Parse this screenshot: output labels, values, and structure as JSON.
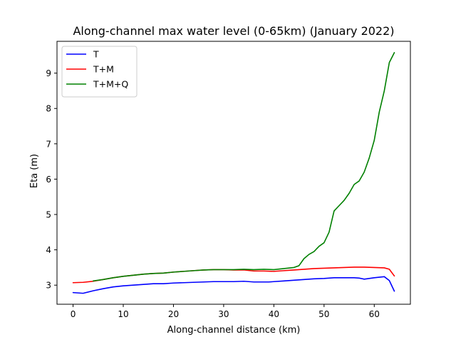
{
  "chart_data": {
    "type": "line",
    "title": "Along-channel max water level (0-65km) (January 2022)",
    "xlabel": "Along-channel distance (km)",
    "ylabel": "Eta (m)",
    "xlim": [
      -3.2,
      67.2
    ],
    "ylim": [
      2.46,
      9.9
    ],
    "xticks": [
      0,
      10,
      20,
      30,
      40,
      50,
      60
    ],
    "yticks": [
      3,
      4,
      5,
      6,
      7,
      8,
      9
    ],
    "grid": false,
    "legend_position": "top-left",
    "series": [
      {
        "name": "T",
        "color": "#0000ff",
        "x": [
          0,
          2,
          4,
          6,
          8,
          10,
          12,
          14,
          16,
          18,
          20,
          22,
          24,
          26,
          28,
          30,
          32,
          34,
          35,
          36,
          38,
          39,
          40,
          42,
          44,
          46,
          48,
          50,
          52,
          54,
          56,
          57,
          58,
          60,
          62,
          63,
          64
        ],
        "y": [
          2.79,
          2.77,
          2.84,
          2.9,
          2.95,
          2.98,
          3.0,
          3.02,
          3.04,
          3.04,
          3.06,
          3.07,
          3.08,
          3.09,
          3.1,
          3.1,
          3.1,
          3.11,
          3.1,
          3.09,
          3.09,
          3.09,
          3.1,
          3.12,
          3.14,
          3.16,
          3.18,
          3.19,
          3.21,
          3.21,
          3.21,
          3.2,
          3.17,
          3.21,
          3.24,
          3.13,
          2.83
        ]
      },
      {
        "name": "T+M",
        "color": "#ff0000",
        "x": [
          0,
          2,
          4,
          6,
          8,
          10,
          12,
          14,
          16,
          18,
          20,
          22,
          24,
          26,
          28,
          30,
          32,
          34,
          36,
          38,
          40,
          42,
          44,
          46,
          48,
          50,
          52,
          54,
          56,
          58,
          60,
          62,
          63,
          64
        ],
        "y": [
          3.07,
          3.08,
          3.11,
          3.16,
          3.21,
          3.25,
          3.28,
          3.31,
          3.33,
          3.34,
          3.37,
          3.39,
          3.41,
          3.43,
          3.44,
          3.44,
          3.43,
          3.43,
          3.4,
          3.4,
          3.39,
          3.41,
          3.43,
          3.45,
          3.47,
          3.48,
          3.49,
          3.5,
          3.51,
          3.51,
          3.5,
          3.49,
          3.45,
          3.26
        ]
      },
      {
        "name": "T+M+Q",
        "color": "#008000",
        "x": [
          4,
          6,
          8,
          10,
          12,
          14,
          16,
          18,
          20,
          22,
          24,
          26,
          28,
          30,
          32,
          34,
          36,
          38,
          40,
          42,
          44,
          45,
          46,
          47,
          48,
          49,
          50,
          51,
          52,
          53,
          54,
          55,
          56,
          57,
          58,
          59,
          60,
          61,
          62,
          63,
          64
        ],
        "y": [
          3.12,
          3.16,
          3.21,
          3.25,
          3.28,
          3.31,
          3.33,
          3.34,
          3.37,
          3.39,
          3.41,
          3.43,
          3.44,
          3.44,
          3.44,
          3.45,
          3.44,
          3.45,
          3.44,
          3.47,
          3.5,
          3.55,
          3.75,
          3.87,
          3.95,
          4.1,
          4.2,
          4.5,
          5.1,
          5.25,
          5.4,
          5.6,
          5.85,
          5.95,
          6.2,
          6.6,
          7.1,
          7.9,
          8.5,
          9.3,
          9.58
        ]
      }
    ]
  }
}
